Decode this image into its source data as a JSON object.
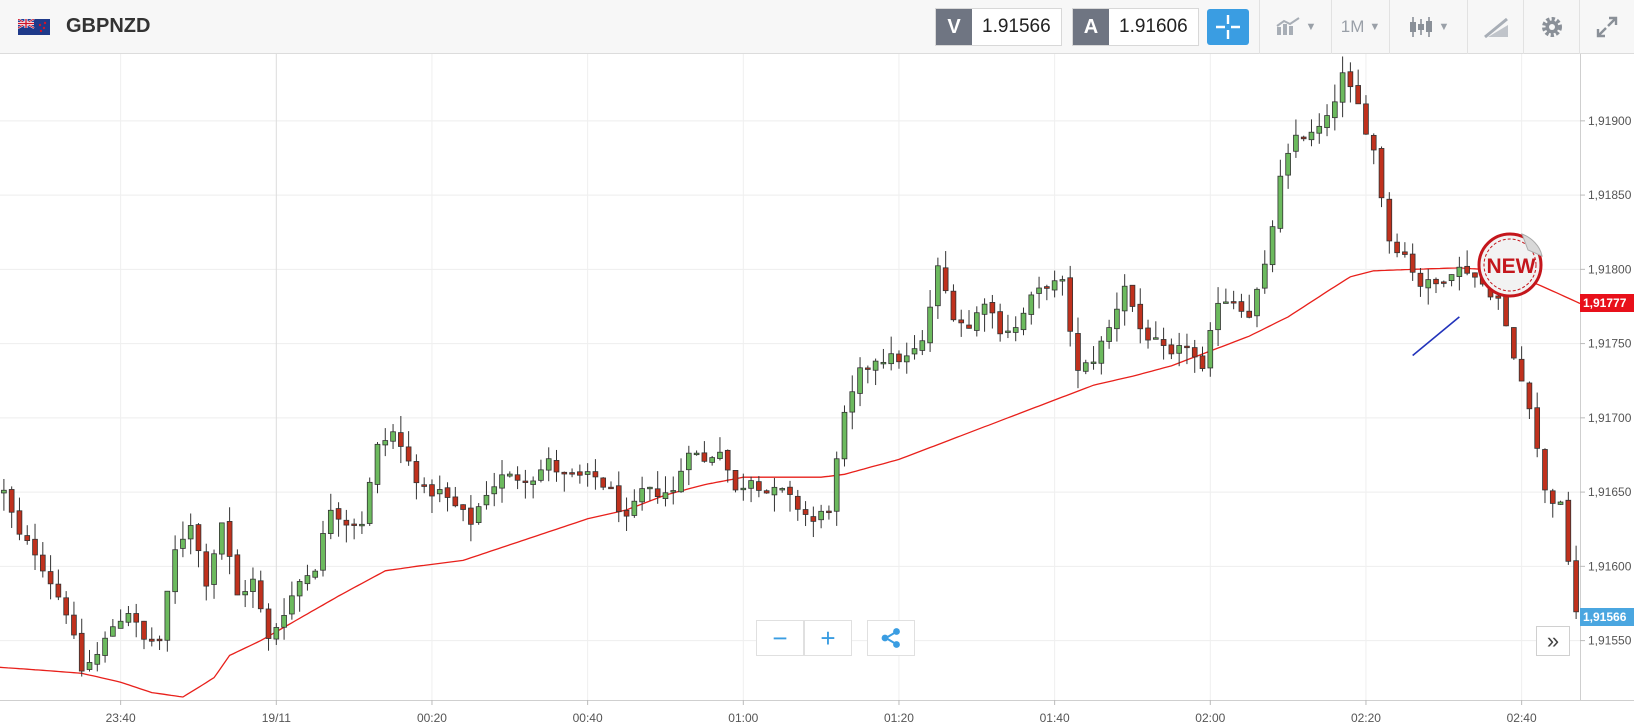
{
  "header": {
    "symbol": "GBPNZD",
    "sell_tag": "V",
    "sell_price": "1.91566",
    "buy_tag": "A",
    "buy_price": "1.91606",
    "timeframe": "1M"
  },
  "toolbar_icons": [
    "crosshair-icon",
    "chart-type-icon",
    "candlestick-icon",
    "draw-icon",
    "gear-icon",
    "fullscreen-icon"
  ],
  "badges": {
    "ma_value": "1,91777",
    "last_price": "1,91566",
    "new_label": "NEW"
  },
  "colors": {
    "up": "#6cba5e",
    "down": "#c0311d",
    "ma": "#e8201b",
    "accent": "#3a9de2",
    "trend": "#2233bb"
  },
  "chart_data": {
    "type": "candlestick",
    "ylim": [
      1.9151,
      1.91945
    ],
    "y_ticks": [
      "1,91550",
      "1,91600",
      "1,91650",
      "1,91700",
      "1,91750",
      "1,91800",
      "1,91850",
      "1,91900"
    ],
    "y_tick_values": [
      1.9155,
      1.916,
      1.9165,
      1.917,
      1.9175,
      1.918,
      1.9185,
      1.919
    ],
    "x_labels": [
      "23:40",
      "19/11",
      "00:20",
      "00:40",
      "01:00",
      "01:20",
      "01:40",
      "02:00",
      "02:20",
      "02:40"
    ],
    "x_label_minutes": [
      -20,
      0,
      20,
      40,
      60,
      80,
      100,
      120,
      140,
      160
    ],
    "x_range_minutes": [
      -35.5,
      167.5
    ],
    "close_keys": [
      [
        -35,
        1.9165
      ],
      [
        -33,
        1.9162
      ],
      [
        -31,
        1.9161
      ],
      [
        -29,
        1.9159
      ],
      [
        -27,
        1.9157
      ],
      [
        -25,
        1.9153
      ],
      [
        -23,
        1.9154
      ],
      [
        -21,
        1.9156
      ],
      [
        -19,
        1.9157
      ],
      [
        -17,
        1.9155
      ],
      [
        -15,
        1.9155
      ],
      [
        -13,
        1.9161
      ],
      [
        -11,
        1.9163
      ],
      [
        -9,
        1.9159
      ],
      [
        -7,
        1.9163
      ],
      [
        -5,
        1.9158
      ],
      [
        -3,
        1.9159
      ],
      [
        -1,
        1.9155
      ],
      [
        1,
        1.9157
      ],
      [
        3,
        1.9159
      ],
      [
        5,
        1.916
      ],
      [
        7,
        1.9164
      ],
      [
        9,
        1.9163
      ],
      [
        11,
        1.9163
      ],
      [
        13,
        1.9168
      ],
      [
        15,
        1.9169
      ],
      [
        17,
        1.9167
      ],
      [
        19,
        1.9165
      ],
      [
        21,
        1.9165
      ],
      [
        23,
        1.9164
      ],
      [
        25,
        1.9163
      ],
      [
        27,
        1.9165
      ],
      [
        29,
        1.9166
      ],
      [
        31,
        1.9166
      ],
      [
        33,
        1.9166
      ],
      [
        35,
        1.9167
      ],
      [
        37,
        1.9166
      ],
      [
        39,
        1.9166
      ],
      [
        41,
        1.9166
      ],
      [
        43,
        1.9165
      ],
      [
        45,
        1.9163
      ],
      [
        47,
        1.9165
      ],
      [
        49,
        1.9165
      ],
      [
        51,
        1.9165
      ],
      [
        53,
        1.9168
      ],
      [
        55,
        1.9167
      ],
      [
        57,
        1.9168
      ],
      [
        59,
        1.9165
      ],
      [
        61,
        1.9166
      ],
      [
        63,
        1.9165
      ],
      [
        65,
        1.9165
      ],
      [
        67,
        1.9164
      ],
      [
        69,
        1.9163
      ],
      [
        71,
        1.9164
      ],
      [
        73,
        1.917
      ],
      [
        75,
        1.9173
      ],
      [
        77,
        1.9174
      ],
      [
        79,
        1.9174
      ],
      [
        81,
        1.9174
      ],
      [
        83,
        1.9175
      ],
      [
        85,
        1.918
      ],
      [
        87,
        1.9177
      ],
      [
        89,
        1.9176
      ],
      [
        91,
        1.9178
      ],
      [
        93,
        1.9176
      ],
      [
        95,
        1.9176
      ],
      [
        97,
        1.9178
      ],
      [
        99,
        1.9179
      ],
      [
        101,
        1.9179
      ],
      [
        103,
        1.9173
      ],
      [
        105,
        1.9174
      ],
      [
        107,
        1.9176
      ],
      [
        109,
        1.9179
      ],
      [
        111,
        1.9176
      ],
      [
        113,
        1.9175
      ],
      [
        115,
        1.9174
      ],
      [
        117,
        1.9175
      ],
      [
        119,
        1.9173
      ],
      [
        121,
        1.9178
      ],
      [
        123,
        1.9178
      ],
      [
        125,
        1.9177
      ],
      [
        127,
        1.918
      ],
      [
        129,
        1.9186
      ],
      [
        131,
        1.9189
      ],
      [
        133,
        1.9189
      ],
      [
        135,
        1.919
      ],
      [
        137,
        1.9193
      ],
      [
        139,
        1.9191
      ],
      [
        141,
        1.9188
      ],
      [
        143,
        1.9182
      ],
      [
        145,
        1.9181
      ],
      [
        147,
        1.9179
      ],
      [
        149,
        1.9179
      ],
      [
        151,
        1.918
      ],
      [
        153,
        1.918
      ],
      [
        155,
        1.9179
      ],
      [
        157,
        1.9178
      ],
      [
        159,
        1.9174
      ],
      [
        161,
        1.9171
      ],
      [
        163,
        1.9165
      ],
      [
        165,
        1.9164
      ],
      [
        167,
        1.9157
      ]
    ],
    "ma_keys": [
      [
        -35.5,
        1.91532
      ],
      [
        -30,
        1.9153
      ],
      [
        -25,
        1.91528
      ],
      [
        -20,
        1.91522
      ],
      [
        -16,
        1.91515
      ],
      [
        -12,
        1.91512
      ],
      [
        -8,
        1.91525
      ],
      [
        -6,
        1.9154
      ],
      [
        -2,
        1.9155
      ],
      [
        2,
        1.91562
      ],
      [
        8,
        1.9158
      ],
      [
        14,
        1.91597
      ],
      [
        18,
        1.916
      ],
      [
        24,
        1.91604
      ],
      [
        32,
        1.91618
      ],
      [
        40,
        1.91632
      ],
      [
        45,
        1.91638
      ],
      [
        50,
        1.91648
      ],
      [
        55,
        1.91655
      ],
      [
        60,
        1.9166
      ],
      [
        70,
        1.9166
      ],
      [
        73,
        1.91662
      ],
      [
        80,
        1.91672
      ],
      [
        90,
        1.91692
      ],
      [
        100,
        1.91712
      ],
      [
        105,
        1.91722
      ],
      [
        110,
        1.91728
      ],
      [
        115,
        1.91735
      ],
      [
        120,
        1.91745
      ],
      [
        125,
        1.91755
      ],
      [
        130,
        1.91768
      ],
      [
        135,
        1.91785
      ],
      [
        138,
        1.91795
      ],
      [
        141,
        1.91799
      ],
      [
        146,
        1.918
      ],
      [
        152,
        1.91801
      ],
      [
        155,
        1.918
      ],
      [
        158,
        1.91797
      ],
      [
        162,
        1.9179
      ],
      [
        165,
        1.91783
      ],
      [
        167.5,
        1.91777
      ]
    ],
    "trend_line": [
      [
        146,
        1.91742
      ],
      [
        152,
        1.91768
      ]
    ],
    "grid": true
  }
}
